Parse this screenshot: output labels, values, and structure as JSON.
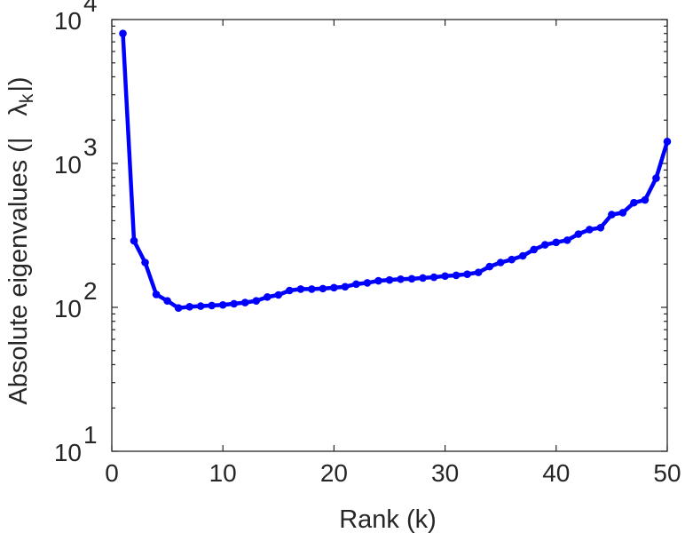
{
  "chart_data": {
    "type": "line",
    "title": "",
    "xlabel": "Rank (k)",
    "ylabel_prefix": "Absolute eigenvalues (|",
    "ylabel_symbol": "λ",
    "ylabel_subscript": "k",
    "ylabel_suffix": "|)",
    "xlim": [
      0,
      50
    ],
    "ylim": [
      10,
      10000
    ],
    "xscale": "linear",
    "yscale": "log",
    "grid": false,
    "legend": "none",
    "xticks": [
      0,
      10,
      20,
      30,
      40,
      50
    ],
    "xtick_labels": [
      "0",
      "10",
      "20",
      "30",
      "40",
      "50"
    ],
    "yticks": [
      10,
      100,
      1000,
      10000
    ],
    "ytick_labels": [
      {
        "base": "10",
        "exp": "1"
      },
      {
        "base": "10",
        "exp": "2"
      },
      {
        "base": "10",
        "exp": "3"
      },
      {
        "base": "10",
        "exp": "4"
      }
    ],
    "series": [
      {
        "color": "#0000ff",
        "marker": "circle",
        "x": [
          1,
          2,
          3,
          4,
          5,
          6,
          7,
          8,
          9,
          10,
          11,
          12,
          13,
          14,
          15,
          16,
          17,
          18,
          19,
          20,
          21,
          22,
          23,
          24,
          25,
          26,
          27,
          28,
          29,
          30,
          31,
          32,
          33,
          34,
          35,
          36,
          37,
          38,
          39,
          40,
          41,
          42,
          43,
          44,
          45,
          46,
          47,
          48,
          49,
          50
        ],
        "y": [
          8000,
          290,
          205,
          123,
          111,
          99,
          101,
          102,
          103,
          104,
          106,
          108,
          111,
          118,
          122,
          131,
          134,
          134,
          135,
          137,
          139,
          145,
          148,
          153,
          155,
          157,
          158,
          160,
          162,
          165,
          167,
          170,
          175,
          192,
          205,
          215,
          228,
          252,
          272,
          283,
          293,
          323,
          347,
          358,
          441,
          455,
          534,
          558,
          790,
          1420
        ]
      }
    ]
  }
}
